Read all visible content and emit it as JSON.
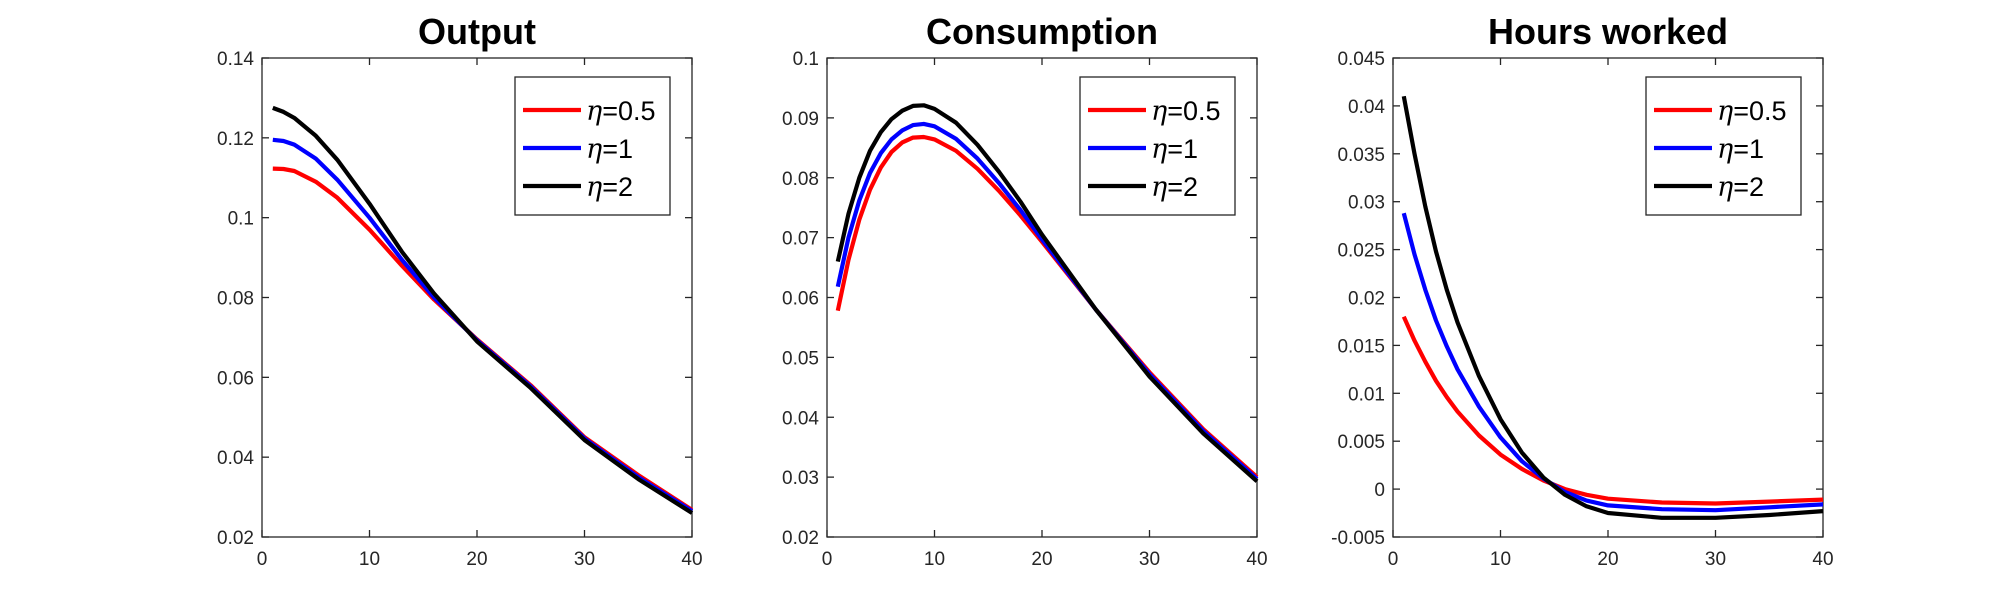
{
  "chart_data": [
    {
      "type": "line",
      "title": "Output",
      "xlabel": "",
      "ylabel": "",
      "xlim": [
        0,
        40
      ],
      "ylim": [
        0.02,
        0.14
      ],
      "xticks": [
        0,
        10,
        20,
        30,
        40
      ],
      "xtick_labels": [
        "0",
        "10",
        "20",
        "30",
        "40"
      ],
      "yticks": [
        0.02,
        0.04,
        0.06,
        0.08,
        0.1,
        0.12,
        0.14
      ],
      "ytick_labels": [
        "0.02",
        "0.04",
        "0.06",
        "0.08",
        "0.1",
        "0.12",
        "0.14"
      ],
      "grid": false,
      "legend_position": "top-right",
      "x": [
        1,
        2,
        3,
        5,
        7,
        10,
        13,
        16,
        20,
        25,
        30,
        35,
        40
      ],
      "series": [
        {
          "name": "η=0.5",
          "color": "#ff0000",
          "values": [
            0.1123,
            0.1122,
            0.1117,
            0.109,
            0.105,
            0.097,
            0.088,
            0.0795,
            0.0695,
            0.058,
            0.045,
            0.0355,
            0.0268
          ]
        },
        {
          "name": "η=1",
          "color": "#0000ff",
          "values": [
            0.1195,
            0.1192,
            0.1183,
            0.1148,
            0.1095,
            0.1,
            0.0895,
            0.08,
            0.0693,
            0.0577,
            0.0447,
            0.035,
            0.0265
          ]
        },
        {
          "name": "η=2",
          "color": "#000000",
          "values": [
            0.1275,
            0.1265,
            0.125,
            0.1205,
            0.1145,
            0.1035,
            0.0915,
            0.081,
            0.069,
            0.0573,
            0.0443,
            0.0345,
            0.026
          ]
        }
      ]
    },
    {
      "type": "line",
      "title": "Consumption",
      "xlabel": "",
      "ylabel": "",
      "xlim": [
        0,
        40
      ],
      "ylim": [
        0.02,
        0.1
      ],
      "xticks": [
        0,
        10,
        20,
        30,
        40
      ],
      "xtick_labels": [
        "0",
        "10",
        "20",
        "30",
        "40"
      ],
      "yticks": [
        0.02,
        0.03,
        0.04,
        0.05,
        0.06,
        0.07,
        0.08,
        0.09,
        0.1
      ],
      "ytick_labels": [
        "0.02",
        "0.03",
        "0.04",
        "0.05",
        "0.06",
        "0.07",
        "0.08",
        "0.09",
        "0.1"
      ],
      "grid": false,
      "legend_position": "top-right",
      "x": [
        1,
        2,
        3,
        4,
        5,
        6,
        7,
        8,
        9,
        10,
        12,
        14,
        16,
        18,
        20,
        25,
        30,
        35,
        40
      ],
      "series": [
        {
          "name": "η=0.5",
          "color": "#ff0000",
          "values": [
            0.0578,
            0.0663,
            0.073,
            0.078,
            0.0817,
            0.0843,
            0.0859,
            0.0867,
            0.0868,
            0.0864,
            0.0845,
            0.0815,
            0.0778,
            0.0737,
            0.0693,
            0.058,
            0.0475,
            0.038,
            0.03
          ]
        },
        {
          "name": "η=1",
          "color": "#0000ff",
          "values": [
            0.0618,
            0.07,
            0.0762,
            0.0808,
            0.0841,
            0.0864,
            0.0879,
            0.0888,
            0.089,
            0.0886,
            0.0865,
            0.0832,
            0.0791,
            0.0746,
            0.0697,
            0.058,
            0.0472,
            0.0377,
            0.0297
          ]
        },
        {
          "name": "η=2",
          "color": "#000000",
          "values": [
            0.066,
            0.074,
            0.08,
            0.0845,
            0.0876,
            0.0898,
            0.0912,
            0.092,
            0.0921,
            0.0915,
            0.0892,
            0.0855,
            0.081,
            0.076,
            0.0705,
            0.058,
            0.0468,
            0.0373,
            0.0293
          ]
        }
      ]
    },
    {
      "type": "line",
      "title": "Hours worked",
      "xlabel": "",
      "ylabel": "",
      "xlim": [
        0,
        40
      ],
      "ylim": [
        -0.005,
        0.045
      ],
      "xticks": [
        0,
        10,
        20,
        30,
        40
      ],
      "xtick_labels": [
        "0",
        "10",
        "20",
        "30",
        "40"
      ],
      "yticks": [
        -0.005,
        0,
        0.005,
        0.01,
        0.015,
        0.02,
        0.025,
        0.03,
        0.035,
        0.04,
        0.045
      ],
      "ytick_labels": [
        "-0.005",
        "0",
        "0.005",
        "0.01",
        "0.015",
        "0.02",
        "0.025",
        "0.03",
        "0.035",
        "0.04",
        "0.045"
      ],
      "grid": false,
      "legend_position": "top-right",
      "x": [
        1,
        2,
        3,
        4,
        5,
        6,
        8,
        10,
        12,
        14,
        16,
        18,
        20,
        25,
        30,
        35,
        40
      ],
      "series": [
        {
          "name": "η=0.5",
          "color": "#ff0000",
          "values": [
            0.018,
            0.0155,
            0.0133,
            0.0113,
            0.0096,
            0.0081,
            0.0056,
            0.0036,
            0.0021,
            0.0009,
            0.0,
            -0.0006,
            -0.001,
            -0.0014,
            -0.0015,
            -0.0013,
            -0.0011
          ]
        },
        {
          "name": "η=1",
          "color": "#0000ff",
          "values": [
            0.0288,
            0.0245,
            0.0208,
            0.0176,
            0.0149,
            0.0125,
            0.0086,
            0.0054,
            0.0029,
            0.0011,
            -0.0003,
            -0.0012,
            -0.0017,
            -0.0021,
            -0.0022,
            -0.0019,
            -0.0016
          ]
        },
        {
          "name": "η=2",
          "color": "#000000",
          "values": [
            0.041,
            0.035,
            0.0295,
            0.0248,
            0.0208,
            0.0174,
            0.0118,
            0.0073,
            0.0038,
            0.0012,
            -0.0006,
            -0.0018,
            -0.0025,
            -0.003,
            -0.003,
            -0.0027,
            -0.0023
          ]
        }
      ]
    }
  ]
}
